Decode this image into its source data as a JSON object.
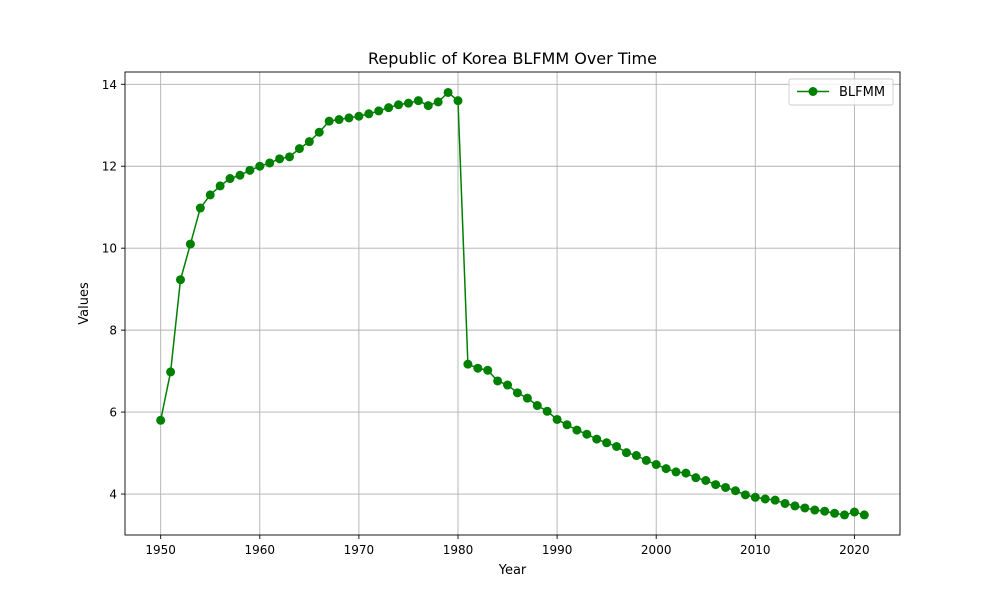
{
  "chart_data": {
    "type": "line",
    "title": "Republic of Korea BLFMM Over Time",
    "xlabel": "Year",
    "ylabel": "Values",
    "xlim": [
      1946.4,
      2024.6
    ],
    "ylim": [
      3.0,
      14.3
    ],
    "xticks": [
      1950,
      1960,
      1970,
      1980,
      1990,
      2000,
      2010,
      2020
    ],
    "yticks": [
      4,
      6,
      8,
      10,
      12,
      14
    ],
    "grid": true,
    "legend_position": "top-right",
    "series": [
      {
        "name": "BLFMM",
        "color": "#008000",
        "marker": "circle",
        "x": [
          1950,
          1951,
          1952,
          1953,
          1954,
          1955,
          1956,
          1957,
          1958,
          1959,
          1960,
          1961,
          1962,
          1963,
          1964,
          1965,
          1966,
          1967,
          1968,
          1969,
          1970,
          1971,
          1972,
          1973,
          1974,
          1975,
          1976,
          1977,
          1978,
          1979,
          1980,
          1981,
          1982,
          1983,
          1984,
          1985,
          1986,
          1987,
          1988,
          1989,
          1990,
          1991,
          1992,
          1993,
          1994,
          1995,
          1996,
          1997,
          1998,
          1999,
          2000,
          2001,
          2002,
          2003,
          2004,
          2005,
          2006,
          2007,
          2008,
          2009,
          2010,
          2011,
          2012,
          2013,
          2014,
          2015,
          2016,
          2017,
          2018,
          2019,
          2020,
          2021
        ],
        "y": [
          5.8,
          6.98,
          9.23,
          10.1,
          10.98,
          11.3,
          11.52,
          11.7,
          11.78,
          11.9,
          12.0,
          12.08,
          12.18,
          12.23,
          12.43,
          12.6,
          12.83,
          13.1,
          13.14,
          13.18,
          13.22,
          13.28,
          13.35,
          13.43,
          13.5,
          13.54,
          13.6,
          13.48,
          13.57,
          13.8,
          13.6,
          7.17,
          7.07,
          7.02,
          6.76,
          6.66,
          6.47,
          6.34,
          6.16,
          6.02,
          5.82,
          5.69,
          5.56,
          5.46,
          5.34,
          5.25,
          5.16,
          5.01,
          4.94,
          4.82,
          4.72,
          4.62,
          4.54,
          4.51,
          4.4,
          4.33,
          4.23,
          4.16,
          4.08,
          3.98,
          3.92,
          3.88,
          3.85,
          3.77,
          3.71,
          3.66,
          3.61,
          3.58,
          3.53,
          3.49,
          3.56,
          3.49
        ]
      }
    ]
  }
}
